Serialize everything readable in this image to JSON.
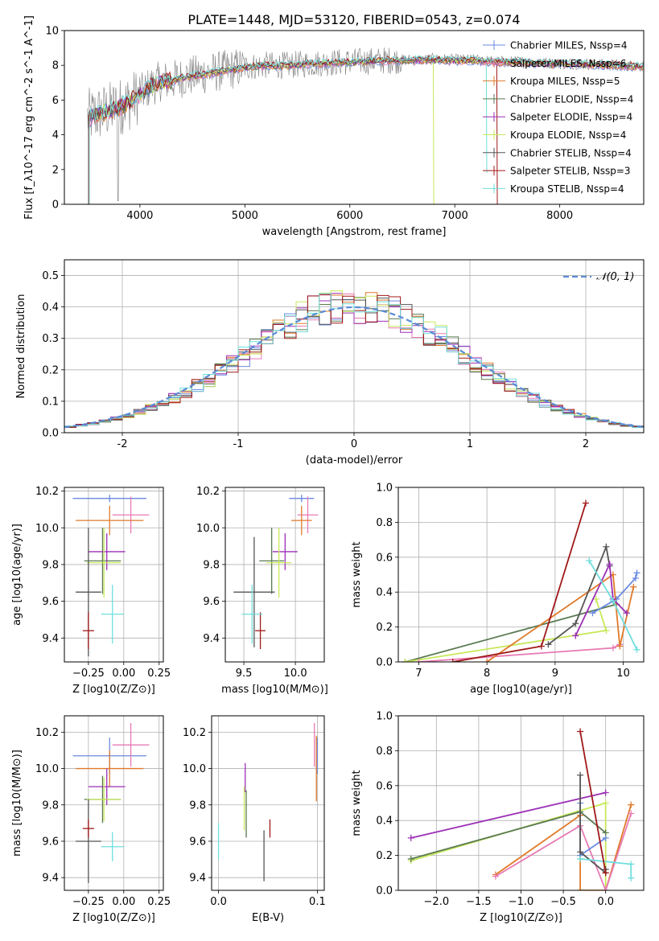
{
  "figure": {
    "title": "PLATE=1448, MJD=53120, FIBERID=0543, z=0.074"
  },
  "colors": {
    "chabrier_miles": "#6a8ae0",
    "salpeter_miles": "#e87ab4",
    "kroupa_miles": "#e07a2a",
    "chabrier_elodie": "#5a7a52",
    "salpeter_elodie": "#9b2fb5",
    "kroupa_elodie": "#c8e85a",
    "chabrier_stelib": "#555555",
    "salpeter_stelib": "#a01818",
    "kroupa_stelib": "#6fdede",
    "data": "#808080"
  },
  "chart_data": [
    {
      "id": "spectrum",
      "type": "line",
      "xlabel": "wavelength [Angstrom, rest frame]",
      "ylabel": "Flux [f_λ10^-17 erg cm^-2 s^-1 A^-1]",
      "xlim": [
        3280,
        8800
      ],
      "ylim": [
        0,
        10
      ],
      "xticks": [
        4000,
        5000,
        6000,
        7000,
        8000
      ],
      "yticks": [
        0,
        2,
        4,
        6,
        8,
        10
      ],
      "grid": false,
      "legend_position": "upper-right",
      "series": [
        {
          "key": "chabrier_miles",
          "name": "Chabrier MILES, N_SSP=4"
        },
        {
          "key": "salpeter_miles",
          "name": "Salpeter MILES, N_SSP=6"
        },
        {
          "key": "kroupa_miles",
          "name": "Kroupa MILES, N_SSP=5"
        },
        {
          "key": "chabrier_elodie",
          "name": "Chabrier ELODIE, N_SSP=4"
        },
        {
          "key": "salpeter_elodie",
          "name": "Salpeter ELODIE, N_SSP=4"
        },
        {
          "key": "kroupa_elodie",
          "name": "Kroupa ELODIE, N_SSP=4"
        },
        {
          "key": "chabrier_stelib",
          "name": "Chabrier STELIB, N_SSP=4"
        },
        {
          "key": "salpeter_stelib",
          "name": "Salpeter STELIB, N_SSP=3"
        },
        {
          "key": "kroupa_stelib",
          "name": "Kroupa STELIB, N_SSP=4"
        }
      ],
      "continuum": {
        "x": [
          3500,
          3600,
          3700,
          3800,
          3900,
          4000,
          4100,
          4200,
          4300,
          4400,
          4600,
          4800,
          5000,
          5200,
          5400,
          5600,
          5800,
          6000,
          6200,
          6400,
          6600,
          6800,
          7000,
          7200,
          7400,
          7600,
          7800,
          8000,
          8200,
          8400,
          8600,
          8800
        ],
        "y": [
          5.0,
          5.2,
          5.4,
          5.6,
          5.9,
          6.3,
          6.8,
          7.1,
          7.1,
          7.3,
          7.5,
          7.7,
          7.9,
          8.0,
          8.0,
          8.1,
          8.15,
          8.2,
          8.25,
          8.3,
          8.3,
          8.35,
          8.3,
          8.3,
          8.2,
          8.2,
          8.15,
          8.1,
          8.1,
          8.05,
          8.0,
          7.95
        ]
      }
    },
    {
      "id": "residuals",
      "type": "step",
      "xlabel": "(data-model)/error",
      "ylabel": "Normed distribution",
      "xlim": [
        -2.5,
        2.5
      ],
      "ylim": [
        0,
        0.55
      ],
      "xticks": [
        -2,
        -1,
        0,
        1,
        2
      ],
      "yticks": [
        0.0,
        0.1,
        0.2,
        0.3,
        0.4,
        0.5
      ],
      "grid": true,
      "legend_position": "upper-right",
      "gaussian_label": "𝒩(0, 1)",
      "bin_centers": [
        -2.45,
        -2.35,
        -2.25,
        -2.15,
        -2.05,
        -1.95,
        -1.85,
        -1.75,
        -1.65,
        -1.55,
        -1.45,
        -1.35,
        -1.25,
        -1.15,
        -1.05,
        -0.95,
        -0.85,
        -0.75,
        -0.65,
        -0.55,
        -0.45,
        -0.35,
        -0.25,
        -0.15,
        -0.05,
        0.05,
        0.15,
        0.25,
        0.35,
        0.45,
        0.55,
        0.65,
        0.75,
        0.85,
        0.95,
        1.05,
        1.15,
        1.25,
        1.35,
        1.45,
        1.55,
        1.65,
        1.75,
        1.85,
        1.95,
        2.05,
        2.15,
        2.25,
        2.35,
        2.45
      ],
      "base_histogram": [
        0.019,
        0.024,
        0.029,
        0.036,
        0.044,
        0.054,
        0.066,
        0.079,
        0.093,
        0.11,
        0.13,
        0.15,
        0.17,
        0.195,
        0.22,
        0.245,
        0.27,
        0.3,
        0.32,
        0.345,
        0.37,
        0.385,
        0.395,
        0.4,
        0.4,
        0.4,
        0.4,
        0.395,
        0.385,
        0.37,
        0.345,
        0.32,
        0.3,
        0.27,
        0.245,
        0.22,
        0.195,
        0.17,
        0.15,
        0.13,
        0.11,
        0.093,
        0.079,
        0.066,
        0.054,
        0.044,
        0.036,
        0.029,
        0.024,
        0.019
      ]
    },
    {
      "id": "age-vs-z",
      "type": "errorbar",
      "xlabel": "Z [log10(Z/Z⊙)]",
      "ylabel": "age [log10(age/yr)]",
      "xlim": [
        -0.42,
        0.28
      ],
      "ylim": [
        9.27,
        10.22
      ],
      "xticks": [
        -0.25,
        0.0,
        0.25
      ],
      "xtick_labels": [
        "−0.25",
        "0.00",
        "0.25"
      ],
      "yticks": [
        9.4,
        9.6,
        9.8,
        10.0,
        10.2
      ],
      "grid": true,
      "points": [
        {
          "key": "chabrier_miles",
          "x": -0.1,
          "y": 10.16,
          "xerr": 0.26,
          "yerr": 0.02
        },
        {
          "key": "salpeter_miles",
          "x": 0.05,
          "y": 10.07,
          "xerr": 0.13,
          "yerr": 0.1
        },
        {
          "key": "kroupa_miles",
          "x": -0.1,
          "y": 10.04,
          "xerr": 0.24,
          "yerr": 0.08
        },
        {
          "key": "chabrier_elodie",
          "x": -0.15,
          "y": 9.82,
          "xerr": 0.13,
          "yerr": 0.18
        },
        {
          "key": "salpeter_elodie",
          "x": -0.12,
          "y": 9.87,
          "xerr": 0.13,
          "yerr": 0.1
        },
        {
          "key": "kroupa_elodie",
          "x": -0.14,
          "y": 9.81,
          "xerr": 0.12,
          "yerr": 0.19
        },
        {
          "key": "chabrier_stelib",
          "x": -0.25,
          "y": 9.65,
          "xerr": 0.09,
          "yerr": 0.35
        },
        {
          "key": "salpeter_stelib",
          "x": -0.25,
          "y": 9.44,
          "xerr": 0.04,
          "yerr": 0.1
        },
        {
          "key": "kroupa_stelib",
          "x": -0.08,
          "y": 9.53,
          "xerr": 0.08,
          "yerr": 0.16
        }
      ]
    },
    {
      "id": "age-vs-mass",
      "type": "errorbar",
      "xlabel": "mass [log10(M/M⊙)]",
      "ylabel": "",
      "xlim": [
        9.32,
        10.28
      ],
      "ylim": [
        9.27,
        10.22
      ],
      "xticks": [
        9.5,
        10.0
      ],
      "xtick_labels": [
        "9.5",
        "10.0"
      ],
      "yticks": [
        9.4,
        9.6,
        9.8,
        10.0,
        10.2
      ],
      "grid": true,
      "points": [
        {
          "key": "chabrier_miles",
          "x": 10.06,
          "y": 10.16,
          "xerr": 0.12,
          "yerr": 0.02
        },
        {
          "key": "salpeter_miles",
          "x": 10.12,
          "y": 10.07,
          "xerr": 0.1,
          "yerr": 0.1
        },
        {
          "key": "kroupa_miles",
          "x": 10.06,
          "y": 10.04,
          "xerr": 0.1,
          "yerr": 0.08
        },
        {
          "key": "chabrier_elodie",
          "x": 9.77,
          "y": 9.82,
          "xerr": 0.12,
          "yerr": 0.18
        },
        {
          "key": "salpeter_elodie",
          "x": 9.9,
          "y": 9.87,
          "xerr": 0.12,
          "yerr": 0.1
        },
        {
          "key": "kroupa_elodie",
          "x": 9.84,
          "y": 9.81,
          "xerr": 0.12,
          "yerr": 0.19
        },
        {
          "key": "chabrier_stelib",
          "x": 9.6,
          "y": 9.65,
          "xerr": 0.2,
          "yerr": 0.3
        },
        {
          "key": "salpeter_stelib",
          "x": 9.66,
          "y": 9.44,
          "xerr": 0.05,
          "yerr": 0.1
        },
        {
          "key": "kroupa_stelib",
          "x": 9.58,
          "y": 9.53,
          "xerr": 0.1,
          "yerr": 0.16
        }
      ]
    },
    {
      "id": "weight-vs-age",
      "type": "line",
      "xlabel": "age [log10(age/yr)]",
      "ylabel": "mass weight",
      "xlim": [
        6.7,
        10.3
      ],
      "ylim": [
        0,
        1.0
      ],
      "xticks": [
        7,
        8,
        9,
        10
      ],
      "yticks": [
        0.0,
        0.2,
        0.4,
        0.6,
        0.8,
        1.0
      ],
      "grid": true,
      "series": [
        {
          "key": "chabrier_elodie",
          "x": [
            6.8,
            9.9
          ],
          "y": [
            0.0,
            0.33
          ]
        },
        {
          "key": "kroupa_elodie",
          "x": [
            6.8,
            9.75,
            9.6
          ],
          "y": [
            0.0,
            0.18,
            0.36
          ]
        },
        {
          "key": "salpeter_miles",
          "x": [
            7.0,
            9.85,
            9.95
          ],
          "y": [
            0.0,
            0.08,
            0.1
          ]
        },
        {
          "key": "chabrier_miles",
          "x": [
            9.55,
            9.9,
            10.18,
            10.2
          ],
          "y": [
            0.28,
            0.36,
            0.48,
            0.51
          ]
        },
        {
          "key": "kroupa_miles",
          "x": [
            8.0,
            9.85,
            9.95,
            10.15
          ],
          "y": [
            0.0,
            0.5,
            0.09,
            0.43
          ]
        },
        {
          "key": "chabrier_stelib",
          "x": [
            8.9,
            9.3,
            9.75,
            9.8
          ],
          "y": [
            0.1,
            0.22,
            0.66,
            0.55
          ]
        },
        {
          "key": "salpeter_elodie",
          "x": [
            9.3,
            9.8,
            9.85,
            10.05
          ],
          "y": [
            0.15,
            0.56,
            0.36,
            0.28
          ]
        },
        {
          "key": "kroupa_stelib",
          "x": [
            9.5,
            9.85,
            10.2
          ],
          "y": [
            0.58,
            0.35,
            0.07
          ]
        },
        {
          "key": "salpeter_stelib",
          "x": [
            7.5,
            8.8,
            9.45
          ],
          "y": [
            0.0,
            0.09,
            0.91
          ]
        }
      ]
    },
    {
      "id": "mass-vs-z",
      "type": "errorbar",
      "xlabel": "Z [log10(Z/Z⊙)]",
      "ylabel": "mass [log10(M/M⊙)]",
      "xlim": [
        -0.42,
        0.28
      ],
      "ylim": [
        9.33,
        10.29
      ],
      "xticks": [
        -0.25,
        0.0,
        0.25
      ],
      "xtick_labels": [
        "−0.25",
        "0.00",
        "0.25"
      ],
      "yticks": [
        9.4,
        9.6,
        9.8,
        10.0,
        10.2
      ],
      "grid": true,
      "points": [
        {
          "key": "chabrier_miles",
          "x": -0.1,
          "y": 10.07,
          "xerr": 0.26,
          "yerr": 0.1
        },
        {
          "key": "salpeter_miles",
          "x": 0.05,
          "y": 10.13,
          "xerr": 0.13,
          "yerr": 0.12
        },
        {
          "key": "kroupa_miles",
          "x": -0.1,
          "y": 10.0,
          "xerr": 0.24,
          "yerr": 0.1
        },
        {
          "key": "chabrier_elodie",
          "x": -0.15,
          "y": 9.83,
          "xerr": 0.13,
          "yerr": 0.13
        },
        {
          "key": "salpeter_elodie",
          "x": -0.12,
          "y": 9.9,
          "xerr": 0.13,
          "yerr": 0.1
        },
        {
          "key": "kroupa_elodie",
          "x": -0.14,
          "y": 9.83,
          "xerr": 0.12,
          "yerr": 0.12
        },
        {
          "key": "chabrier_stelib",
          "x": -0.25,
          "y": 9.6,
          "xerr": 0.09,
          "yerr": 0.23
        },
        {
          "key": "salpeter_stelib",
          "x": -0.25,
          "y": 9.67,
          "xerr": 0.04,
          "yerr": 0.05
        },
        {
          "key": "kroupa_stelib",
          "x": -0.08,
          "y": 9.57,
          "xerr": 0.08,
          "yerr": 0.08
        }
      ]
    },
    {
      "id": "mass-vs-ebv",
      "type": "errorbar",
      "xlabel": "E(B-V)",
      "ylabel": "",
      "xlim": [
        -0.007,
        0.107
      ],
      "ylim": [
        9.33,
        10.29
      ],
      "xticks": [
        0.0,
        0.1
      ],
      "xtick_labels": [
        "0.0",
        "0.1"
      ],
      "yticks": [
        9.4,
        9.6,
        9.8,
        10.0,
        10.2
      ],
      "grid": true,
      "points": [
        {
          "key": "chabrier_miles",
          "x": 0.1,
          "y": 10.07,
          "xerr": 0.0,
          "yerr": 0.1
        },
        {
          "key": "salpeter_miles",
          "x": 0.097,
          "y": 10.13,
          "xerr": 0.0,
          "yerr": 0.12
        },
        {
          "key": "kroupa_miles",
          "x": 0.099,
          "y": 10.0,
          "xerr": 0.0,
          "yerr": 0.18
        },
        {
          "key": "chabrier_elodie",
          "x": 0.028,
          "y": 9.75,
          "xerr": 0.0,
          "yerr": 0.13
        },
        {
          "key": "salpeter_elodie",
          "x": 0.027,
          "y": 9.95,
          "xerr": 0.0,
          "yerr": 0.08
        },
        {
          "key": "kroupa_elodie",
          "x": 0.026,
          "y": 9.78,
          "xerr": 0.0,
          "yerr": 0.12
        },
        {
          "key": "chabrier_stelib",
          "x": 0.046,
          "y": 9.52,
          "xerr": 0.0,
          "yerr": 0.14
        },
        {
          "key": "salpeter_stelib",
          "x": 0.052,
          "y": 9.67,
          "xerr": 0.0,
          "yerr": 0.05
        },
        {
          "key": "kroupa_stelib",
          "x": 0.0,
          "y": 9.6,
          "xerr": 0.0,
          "yerr": 0.1
        }
      ]
    },
    {
      "id": "weight-vs-z",
      "type": "line",
      "xlabel": "Z [log10(Z/Z⊙)]",
      "ylabel": "mass weight",
      "xlim": [
        -2.45,
        0.45
      ],
      "ylim": [
        0,
        1.0
      ],
      "xticks": [
        -2.0,
        -1.5,
        -1.0,
        -0.5,
        0.0
      ],
      "xtick_labels": [
        "−2.0",
        "−1.5",
        "−1.0",
        "−0.5",
        "0.0"
      ],
      "yticks": [
        0.0,
        0.2,
        0.4,
        0.6,
        0.8,
        1.0
      ],
      "grid": true,
      "series": [
        {
          "key": "salpeter_elodie",
          "x": [
            -2.3,
            0.0
          ],
          "y": [
            0.3,
            0.56
          ]
        },
        {
          "key": "kroupa_elodie",
          "x": [
            -2.3,
            0.0,
            0.0,
            -0.3
          ],
          "y": [
            0.17,
            0.5,
            0.0,
            0.0
          ]
        },
        {
          "key": "chabrier_elodie",
          "x": [
            -2.3,
            -0.3,
            0.0
          ],
          "y": [
            0.18,
            0.45,
            0.33
          ]
        },
        {
          "key": "kroupa_miles",
          "x": [
            -1.3,
            -0.3,
            -0.3,
            0.0,
            0.3
          ],
          "y": [
            0.09,
            0.43,
            0.0,
            0.0,
            0.49
          ]
        },
        {
          "key": "salpeter_miles",
          "x": [
            -1.3,
            -0.3,
            0.0,
            0.3
          ],
          "y": [
            0.08,
            0.37,
            0.0,
            0.44
          ]
        },
        {
          "key": "chabrier_miles",
          "x": [
            -0.3,
            -0.3,
            0.0
          ],
          "y": [
            0.5,
            0.2,
            0.3
          ]
        },
        {
          "key": "chabrier_stelib",
          "x": [
            -0.3,
            -0.3,
            0.0,
            0.0
          ],
          "y": [
            0.66,
            0.22,
            0.1,
            0.12
          ]
        },
        {
          "key": "kroupa_stelib",
          "x": [
            -0.3,
            0.3,
            0.3
          ],
          "y": [
            0.18,
            0.15,
            0.07
          ]
        },
        {
          "key": "salpeter_stelib",
          "x": [
            -0.3,
            0.0
          ],
          "y": [
            0.91,
            0.1
          ]
        }
      ]
    }
  ]
}
